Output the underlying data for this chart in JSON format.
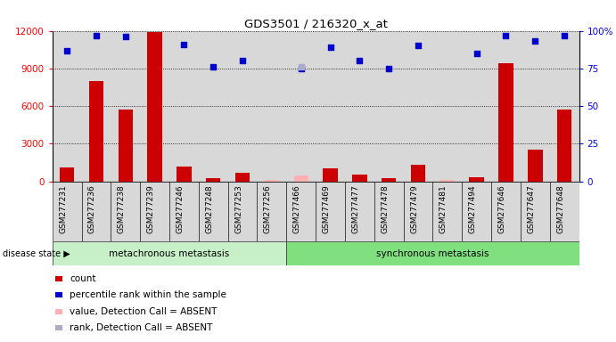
{
  "title": "GDS3501 / 216320_x_at",
  "samples": [
    "GSM277231",
    "GSM277236",
    "GSM277238",
    "GSM277239",
    "GSM277246",
    "GSM277248",
    "GSM277253",
    "GSM277256",
    "GSM277466",
    "GSM277469",
    "GSM277477",
    "GSM277478",
    "GSM277479",
    "GSM277481",
    "GSM277494",
    "GSM277646",
    "GSM277647",
    "GSM277648"
  ],
  "counts": [
    1100,
    8000,
    5700,
    11900,
    1200,
    250,
    700,
    100,
    0,
    1050,
    500,
    250,
    1350,
    100,
    350,
    9400,
    2500,
    5700
  ],
  "absent_counts": [
    null,
    null,
    null,
    null,
    null,
    null,
    null,
    100,
    450,
    null,
    null,
    null,
    null,
    100,
    null,
    null,
    null,
    null
  ],
  "percentile_ranks": [
    87,
    97,
    96,
    null,
    91,
    76,
    80,
    null,
    75,
    89,
    80,
    75,
    90,
    null,
    85,
    97,
    93,
    97
  ],
  "absent_ranks": [
    null,
    null,
    null,
    null,
    null,
    null,
    null,
    null,
    76,
    null,
    null,
    null,
    null,
    null,
    null,
    null,
    null,
    null
  ],
  "n_metachronous": 8,
  "group1_label": "metachronous metastasis",
  "group2_label": "synchronous metastasis",
  "disease_state_label": "disease state",
  "ylim_left": [
    0,
    12000
  ],
  "ylim_right": [
    0,
    100
  ],
  "yticks_left": [
    0,
    3000,
    6000,
    9000,
    12000
  ],
  "yticks_right": [
    0,
    25,
    50,
    75,
    100
  ],
  "bar_color": "#cc0000",
  "absent_bar_color": "#ffb0b0",
  "dot_color": "#0000cc",
  "absent_dot_color": "#aaaacc",
  "bg_color": "#d8d8d8",
  "group1_color": "#c8f0c8",
  "group2_color": "#80e080",
  "legend_items": [
    {
      "label": "count",
      "color": "#cc0000"
    },
    {
      "label": "percentile rank within the sample",
      "color": "#0000cc"
    },
    {
      "label": "value, Detection Call = ABSENT",
      "color": "#ffb0b0"
    },
    {
      "label": "rank, Detection Call = ABSENT",
      "color": "#aaaacc"
    }
  ]
}
